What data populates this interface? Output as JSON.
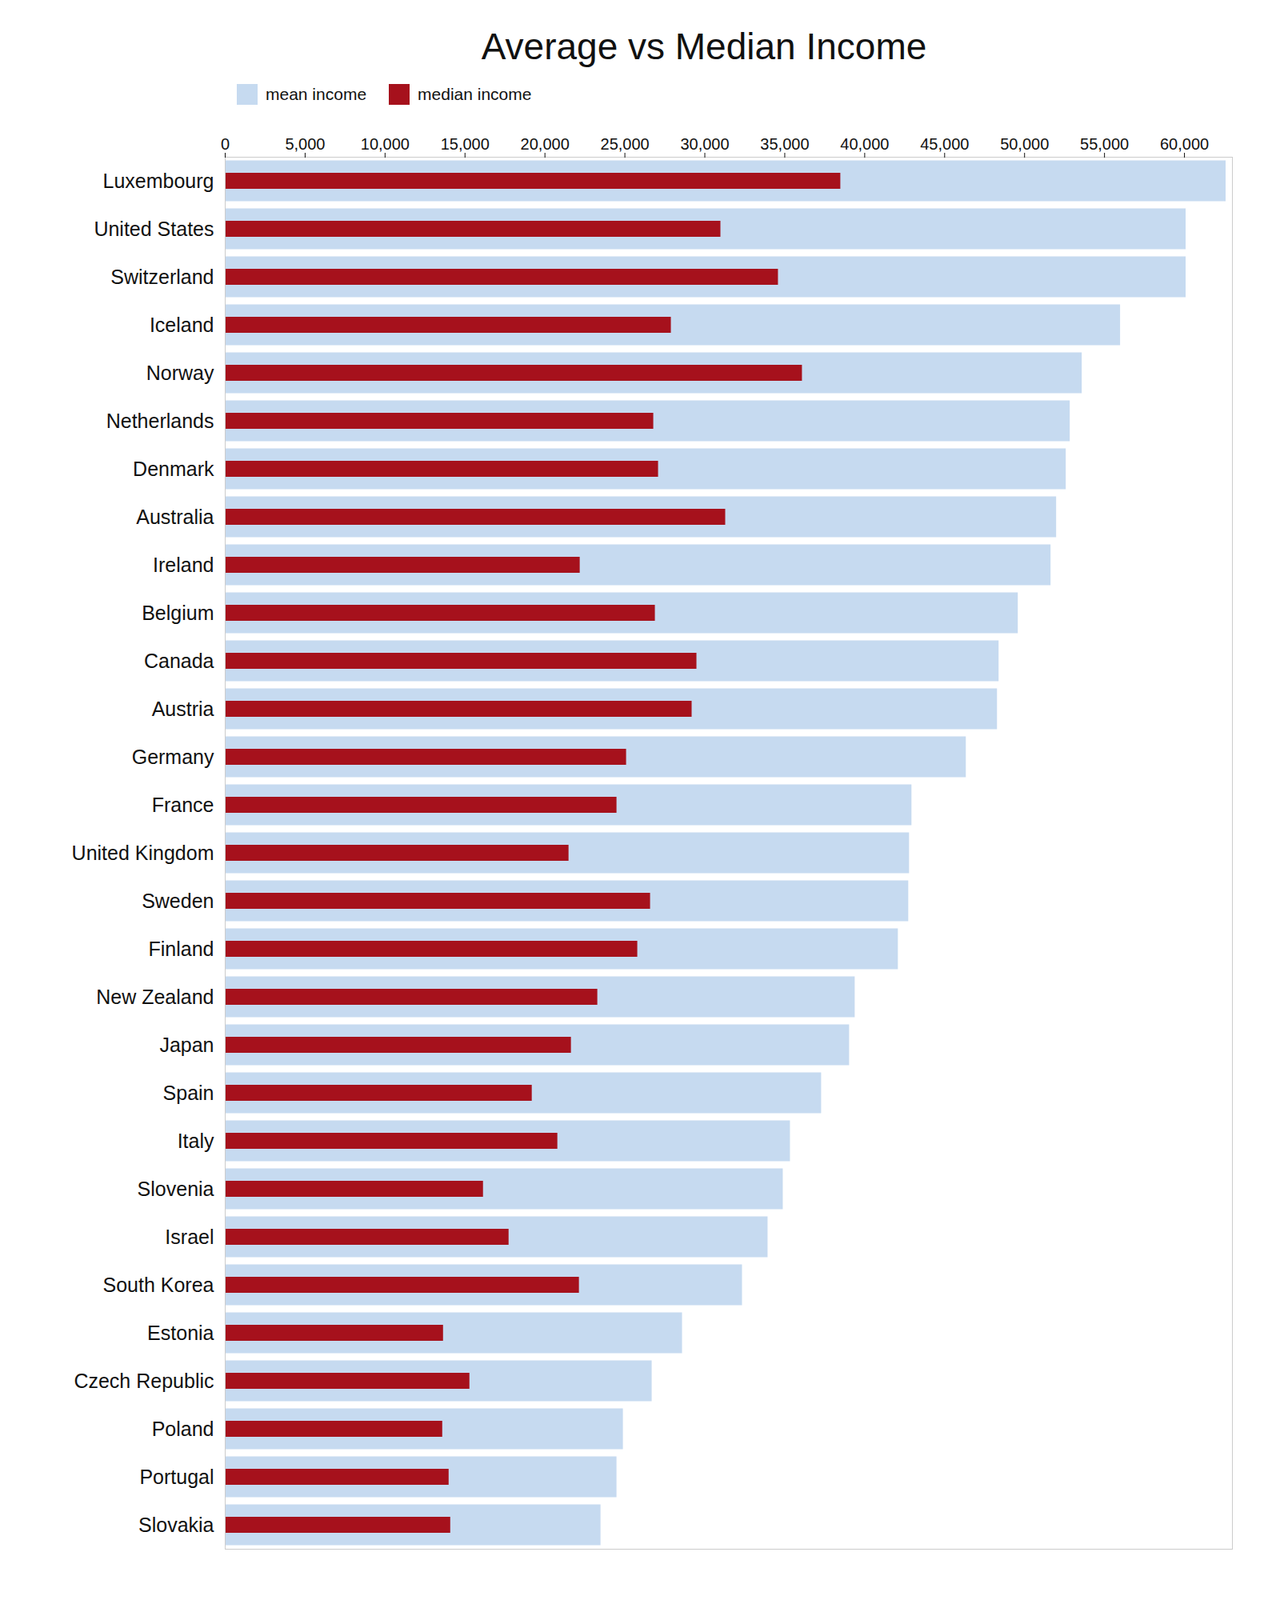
{
  "chart_data": {
    "type": "bar",
    "title": "Average vs Median Income",
    "orientation": "horizontal",
    "stacked": false,
    "legend": "top",
    "grid": false,
    "categories": [
      "Luxembourg",
      "United States",
      "Switzerland",
      "Iceland",
      "Norway",
      "Netherlands",
      "Denmark",
      "Australia",
      "Ireland",
      "Belgium",
      "Canada",
      "Austria",
      "Germany",
      "France",
      "United Kingdom",
      "Sweden",
      "Finland",
      "New Zealand",
      "Japan",
      "Spain",
      "Italy",
      "Slovenia",
      "Israel",
      "South Korea",
      "Estonia",
      "Czech Republic",
      "Poland",
      "Portugal",
      "Slovakia"
    ],
    "series": [
      {
        "name": "mean income",
        "color": "#c6daf0",
        "values": [
          62600,
          60100,
          60100,
          56000,
          53600,
          52850,
          52600,
          52000,
          51650,
          49600,
          48400,
          48300,
          46350,
          42950,
          42800,
          42750,
          42100,
          39400,
          39050,
          37300,
          35350,
          34900,
          33950,
          32350,
          28600,
          26700,
          24900,
          24500,
          23500
        ]
      },
      {
        "name": "median income",
        "color": "#a6111c",
        "values": [
          38500,
          31000,
          34600,
          27900,
          36100,
          26800,
          27100,
          31300,
          22200,
          26900,
          29500,
          29200,
          25100,
          24500,
          21500,
          26600,
          25800,
          23300,
          21650,
          19200,
          20800,
          16150,
          17750,
          22150,
          13650,
          15300,
          13600,
          14000,
          14100
        ]
      }
    ],
    "xlim": [
      0,
      63000
    ],
    "xticks": [
      0,
      {
        "value": 5000,
        "label": "5,000"
      },
      {
        "value": 10000,
        "label": "10,000"
      },
      {
        "value": 15000,
        "label": "15,000"
      },
      {
        "value": 20000,
        "label": "20,000"
      },
      {
        "value": 25000,
        "label": "25,000"
      },
      {
        "value": 30000,
        "label": "30,000"
      },
      {
        "value": 35000,
        "label": "35,000"
      },
      {
        "value": 40000,
        "label": "40,000"
      },
      {
        "value": 45000,
        "label": "45,000"
      },
      {
        "value": 50000,
        "label": "50,000"
      },
      {
        "value": 55000,
        "label": "55,000"
      },
      {
        "value": 60000,
        "label": "60,000"
      }
    ]
  }
}
